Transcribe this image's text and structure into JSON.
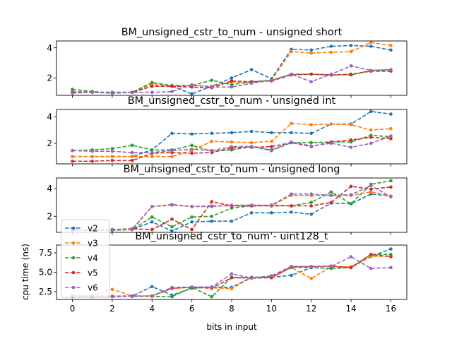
{
  "chart_data": {
    "type": "line",
    "xlabel": "bits in input",
    "ylabel": "cpu time (ns)",
    "x": [
      0,
      1,
      2,
      3,
      4,
      5,
      6,
      7,
      8,
      9,
      10,
      11,
      12,
      13,
      14,
      15,
      16
    ],
    "xticks": [
      0,
      2,
      4,
      6,
      8,
      10,
      12,
      14,
      16
    ],
    "legend": {
      "placement": "lower-left",
      "entries": [
        "v2",
        "v3",
        "v4",
        "v5",
        "v6"
      ]
    },
    "colors": {
      "v2": "#1f77b4",
      "v3": "#ff7f0e",
      "v4": "#2ca02c",
      "v5": "#d62728",
      "v6": "#9467bd"
    },
    "grid": false,
    "subplots": [
      {
        "title": "BM_unsigned_cstr_to_num - unsigned short",
        "ylim": [
          0.85,
          4.45
        ],
        "yticks": [
          2,
          4
        ],
        "series": [
          {
            "name": "v2",
            "values": [
              1.05,
              1.05,
              1.0,
              1.05,
              1.45,
              1.45,
              0.95,
              1.45,
              2.0,
              2.55,
              1.95,
              3.9,
              3.85,
              4.1,
              4.15,
              4.1,
              3.85
            ]
          },
          {
            "name": "v3",
            "values": [
              1.1,
              1.1,
              1.0,
              1.05,
              1.6,
              1.45,
              1.5,
              1.45,
              1.75,
              1.7,
              1.85,
              3.75,
              3.65,
              3.7,
              3.75,
              4.35,
              4.15
            ]
          },
          {
            "name": "v4",
            "values": [
              1.25,
              1.1,
              1.0,
              1.05,
              1.7,
              1.5,
              1.5,
              1.85,
              1.55,
              1.75,
              1.85,
              2.25,
              2.25,
              2.2,
              2.2,
              2.5,
              2.55
            ]
          },
          {
            "name": "v5",
            "values": [
              1.05,
              1.05,
              1.05,
              1.05,
              1.45,
              1.45,
              1.4,
              1.35,
              1.8,
              1.75,
              1.8,
              2.2,
              2.25,
              2.2,
              2.25,
              2.45,
              2.45
            ]
          },
          {
            "name": "v6",
            "values": [
              1.0,
              1.05,
              1.05,
              1.05,
              1.05,
              1.1,
              1.55,
              1.4,
              1.4,
              1.65,
              1.85,
              2.25,
              1.75,
              2.25,
              2.8,
              2.5,
              2.55
            ]
          }
        ]
      },
      {
        "title": "BM_unsigned_cstr_to_num - unsigned int",
        "ylim": [
          0.45,
          4.55
        ],
        "yticks": [
          2,
          4
        ],
        "series": [
          {
            "name": "v2",
            "values": [
              1.0,
              1.0,
              1.0,
              1.0,
              1.5,
              2.75,
              2.7,
              2.75,
              2.8,
              2.9,
              2.8,
              2.8,
              2.75,
              3.45,
              3.45,
              4.4,
              4.2
            ]
          },
          {
            "name": "v3",
            "values": [
              1.0,
              1.0,
              1.0,
              1.0,
              1.0,
              1.0,
              1.45,
              2.15,
              2.1,
              2.05,
              2.15,
              3.5,
              3.4,
              3.45,
              3.4,
              3.0,
              3.1
            ]
          },
          {
            "name": "v4",
            "values": [
              1.45,
              1.5,
              1.6,
              1.85,
              1.5,
              1.5,
              1.85,
              1.4,
              1.5,
              1.75,
              1.45,
              2.05,
              2.05,
              2.1,
              2.1,
              2.6,
              2.5
            ]
          },
          {
            "name": "v5",
            "values": [
              0.65,
              0.65,
              0.7,
              0.7,
              1.25,
              1.3,
              1.25,
              1.3,
              1.65,
              1.7,
              1.75,
              2.05,
              1.75,
              2.1,
              2.25,
              2.45,
              2.35
            ]
          },
          {
            "name": "v6",
            "values": [
              1.45,
              1.4,
              1.4,
              1.3,
              1.3,
              1.45,
              1.55,
              1.45,
              1.75,
              1.75,
              1.5,
              2.1,
              1.8,
              2.0,
              1.7,
              2.0,
              2.55
            ]
          }
        ]
      },
      {
        "title": "BM_unsigned_cstr_to_num - unsigned long",
        "ylim": [
          0.85,
          4.75
        ],
        "yticks": [
          2,
          4
        ],
        "series": [
          {
            "name": "v2",
            "values": [
              1.0,
              1.0,
              1.05,
              1.05,
              1.6,
              0.95,
              1.6,
              1.65,
              1.65,
              2.25,
              2.25,
              2.3,
              2.15,
              2.95,
              2.9,
              3.6,
              3.45
            ]
          },
          {
            "name": "v3",
            "values": [
              1.0,
              1.0,
              1.05,
              1.1,
              2.7,
              2.8,
              2.7,
              2.75,
              2.75,
              2.8,
              2.75,
              3.5,
              3.5,
              3.5,
              3.5,
              3.75,
              3.45
            ]
          },
          {
            "name": "v4",
            "values": [
              1.0,
              1.0,
              1.0,
              1.05,
              1.95,
              1.25,
              1.95,
              2.0,
              2.6,
              2.75,
              2.8,
              2.75,
              3.0,
              3.75,
              2.9,
              4.3,
              4.55
            ]
          },
          {
            "name": "v5",
            "values": [
              1.0,
              1.0,
              1.05,
              1.1,
              1.05,
              1.8,
              1.05,
              3.05,
              2.75,
              2.75,
              2.75,
              2.75,
              2.75,
              3.0,
              4.15,
              3.95,
              4.1
            ]
          },
          {
            "name": "v6",
            "values": [
              1.0,
              1.0,
              1.05,
              1.05,
              2.7,
              2.85,
              2.7,
              2.7,
              2.8,
              2.8,
              2.8,
              3.6,
              3.6,
              3.5,
              3.55,
              4.2,
              3.4
            ]
          }
        ]
      },
      {
        "title": "BM_unsigned_cstr_to_num - uint128_t",
        "ylim": [
          1.5,
          8.5
        ],
        "yticks": [
          2.5,
          5.0,
          7.5
        ],
        "yticklabels": [
          "2.5",
          "5.0",
          "7.5"
        ],
        "series": [
          {
            "name": "v2",
            "values": [
              1.9,
              1.9,
              1.9,
              1.95,
              3.15,
              2.05,
              2.95,
              3.1,
              3.05,
              4.35,
              4.35,
              4.6,
              5.6,
              5.5,
              5.6,
              7.05,
              8.0
            ]
          },
          {
            "name": "v3",
            "values": [
              1.95,
              2.0,
              2.8,
              1.95,
              1.95,
              2.9,
              3.1,
              3.0,
              2.9,
              4.3,
              4.3,
              5.6,
              4.2,
              5.7,
              5.7,
              7.0,
              7.1
            ]
          },
          {
            "name": "v4",
            "values": [
              1.9,
              1.9,
              1.9,
              1.95,
              1.9,
              1.85,
              3.05,
              1.85,
              4.35,
              4.3,
              4.5,
              5.65,
              5.6,
              5.5,
              5.6,
              7.3,
              7.3
            ]
          },
          {
            "name": "v5",
            "values": [
              1.9,
              1.9,
              1.9,
              1.9,
              1.95,
              2.95,
              3.05,
              2.95,
              4.3,
              4.25,
              4.3,
              5.7,
              5.75,
              5.8,
              5.6,
              7.3,
              7.0
            ]
          },
          {
            "name": "v6",
            "values": [
              1.85,
              1.85,
              1.85,
              1.9,
              1.95,
              3.05,
              3.1,
              3.1,
              4.8,
              4.25,
              4.55,
              5.75,
              5.75,
              5.75,
              7.0,
              5.5,
              5.6
            ]
          }
        ]
      }
    ]
  }
}
